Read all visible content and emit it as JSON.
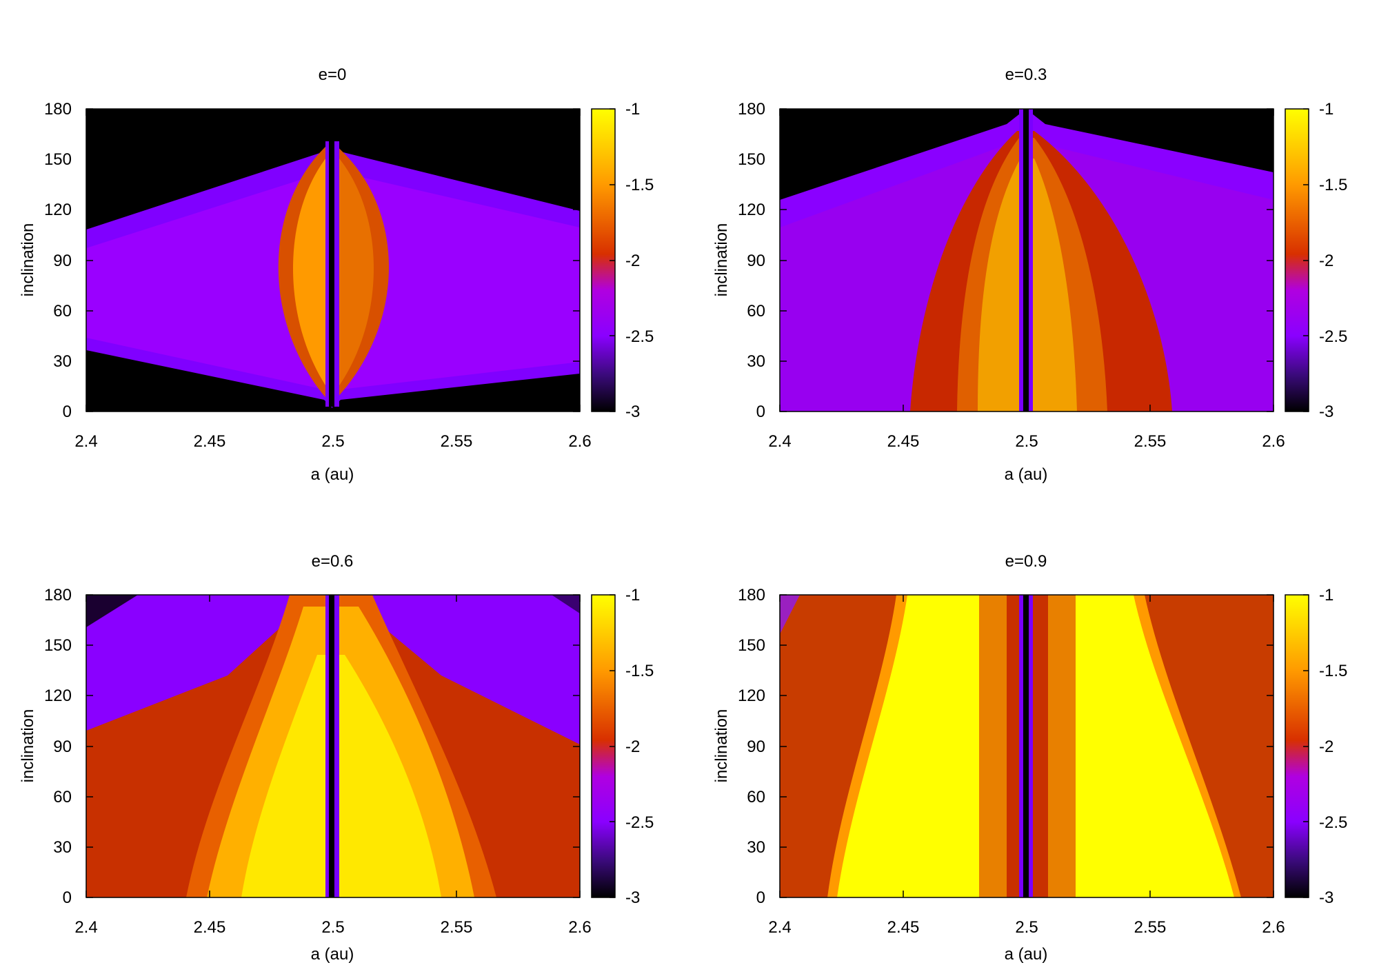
{
  "chart_data": [
    {
      "type": "heatmap",
      "title": "e=0",
      "xlabel": "a (au)",
      "ylabel": "inclination",
      "xlim": [
        2.4,
        2.6
      ],
      "ylim": [
        0,
        180
      ],
      "x_ticks": [
        "2.4",
        "2.45",
        "2.5",
        "2.55",
        "2.6"
      ],
      "y_ticks": [
        "0",
        "30",
        "60",
        "90",
        "120",
        "150",
        "180"
      ],
      "colorbar_range": [
        -3,
        -1
      ],
      "colorbar_ticks": [
        "-3",
        "-2.5",
        "-2",
        "-1.5",
        "-1"
      ],
      "resonance_a": 2.5,
      "features": {
        "envelope_low_at_edges": 30,
        "envelope_high_at_edges": 110,
        "envelope_low_at_center": 5,
        "envelope_high_at_center": 160,
        "lens_half_width_au": 0.02
      }
    },
    {
      "type": "heatmap",
      "title": "e=0.3",
      "xlabel": "a (au)",
      "ylabel": "inclination",
      "xlim": [
        2.4,
        2.6
      ],
      "ylim": [
        0,
        180
      ],
      "x_ticks": [
        "2.4",
        "2.45",
        "2.5",
        "2.55",
        "2.6"
      ],
      "y_ticks": [
        "0",
        "30",
        "60",
        "90",
        "120",
        "150",
        "180"
      ],
      "colorbar_range": [
        -3,
        -1
      ],
      "colorbar_ticks": [
        "-3",
        "-2.5",
        "-2",
        "-1.5",
        "-1"
      ],
      "resonance_a": 2.5,
      "features": {
        "envelope_low_at_edges": 0,
        "envelope_high_at_edges": 130,
        "envelope_high_at_center": 180,
        "inner_zone_left_au": 2.475,
        "inner_zone_right_au": 2.532
      }
    },
    {
      "type": "heatmap",
      "title": "e=0.6",
      "xlabel": "a (au)",
      "ylabel": "inclination",
      "xlim": [
        2.4,
        2.6
      ],
      "ylim": [
        0,
        180
      ],
      "x_ticks": [
        "2.4",
        "2.45",
        "2.5",
        "2.55",
        "2.6"
      ],
      "y_ticks": [
        "0",
        "30",
        "60",
        "90",
        "120",
        "150",
        "180"
      ],
      "colorbar_range": [
        -3,
        -1
      ],
      "colorbar_ticks": [
        "-3",
        "-2.5",
        "-2",
        "-1.5",
        "-1"
      ],
      "resonance_a": 2.5,
      "features": {
        "bright_zone_left_au_at_0": 2.446,
        "bright_zone_right_au_at_0": 2.565,
        "bright_zone_top_inclination": 180
      }
    },
    {
      "type": "heatmap",
      "title": "e=0.9",
      "xlabel": "a (au)",
      "ylabel": "inclination",
      "xlim": [
        2.4,
        2.6
      ],
      "ylim": [
        0,
        180
      ],
      "x_ticks": [
        "2.4",
        "2.45",
        "2.5",
        "2.55",
        "2.6"
      ],
      "y_ticks": [
        "0",
        "30",
        "60",
        "90",
        "120",
        "150",
        "180"
      ],
      "colorbar_range": [
        -3,
        -1
      ],
      "colorbar_ticks": [
        "-3",
        "-2.5",
        "-2",
        "-1.5",
        "-1"
      ],
      "resonance_a": 2.5,
      "features": {
        "bright_zone_left_au_at_0": 2.422,
        "bright_zone_right_au_at_0": 2.583,
        "bright_zone_left_au_at_180": 2.452,
        "bright_zone_right_au_at_180": 2.543
      }
    }
  ],
  "colormap": {
    "name": "gnuplot-pm3d",
    "stops": [
      "#000000",
      "#3a0a7a",
      "#8a00ff",
      "#b000e0",
      "#d83000",
      "#ff9a00",
      "#ffff00"
    ]
  }
}
